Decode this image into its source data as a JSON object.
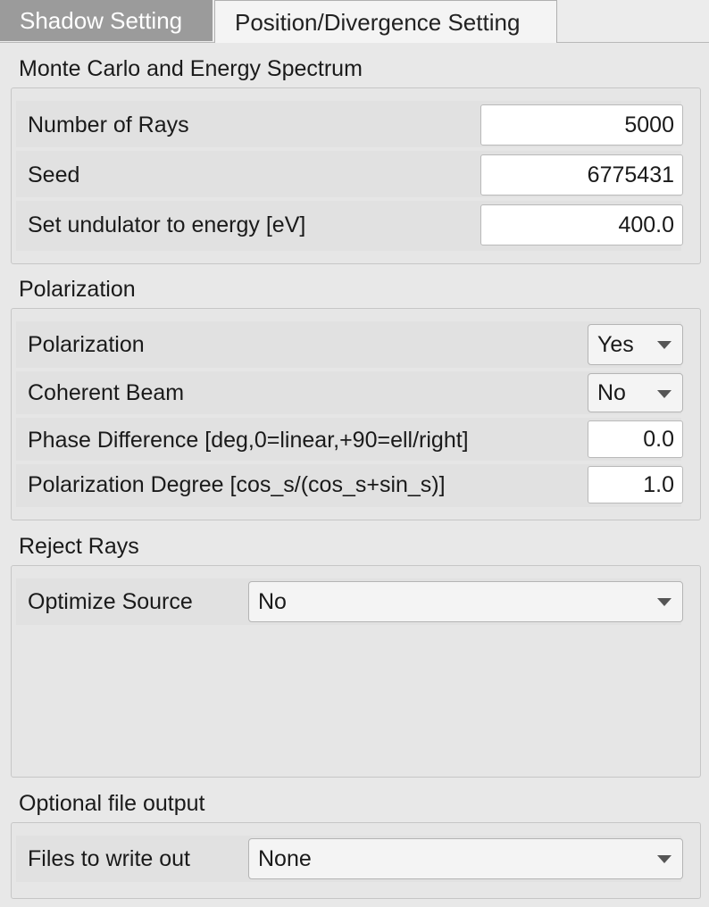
{
  "tabs": [
    {
      "label": "Shadow Setting",
      "active": true
    },
    {
      "label": "Position/Divergence Setting",
      "active": false
    }
  ],
  "monte_carlo": {
    "title": "Monte Carlo and Energy Spectrum",
    "rays_label": "Number of Rays",
    "rays_value": "5000",
    "seed_label": "Seed",
    "seed_value": "6775431",
    "energy_label": "Set undulator to energy [eV]",
    "energy_value": "400.0"
  },
  "polarization": {
    "title": "Polarization",
    "polarization_label": "Polarization",
    "polarization_value": "Yes",
    "coherent_label": "Coherent Beam",
    "coherent_value": "No",
    "phase_label": "Phase Difference [deg,0=linear,+90=ell/right]",
    "phase_value": "0.0",
    "degree_label": "Polarization Degree [cos_s/(cos_s+sin_s)]",
    "degree_value": "1.0"
  },
  "reject_rays": {
    "title": "Reject Rays",
    "optimize_label": "Optimize Source",
    "optimize_value": "No"
  },
  "file_output": {
    "title": "Optional file output",
    "files_label": "Files to write out",
    "files_value": "None"
  },
  "colors": {
    "active_tab_bg": "#9b9b9b",
    "panel_bg": "#e8e8e8",
    "field_bg": "#ffffff"
  }
}
